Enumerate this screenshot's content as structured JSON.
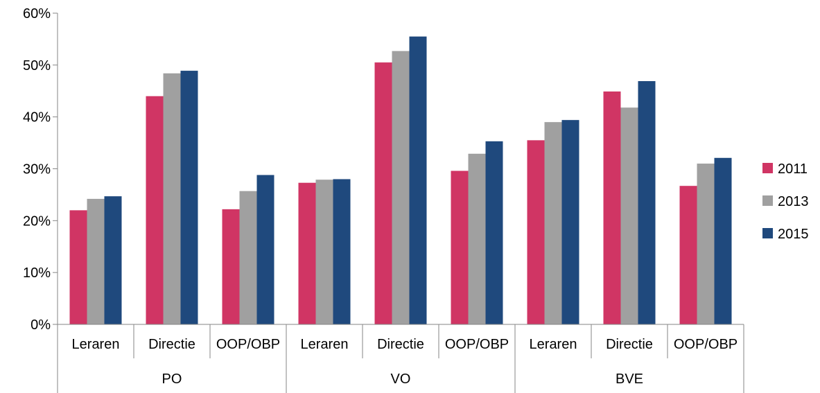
{
  "chart_data": {
    "type": "bar",
    "groups": [
      {
        "label": "PO",
        "categories": [
          "Leraren",
          "Directie",
          "OOP/OBP"
        ]
      },
      {
        "label": "VO",
        "categories": [
          "Leraren",
          "Directie",
          "OOP/OBP"
        ]
      },
      {
        "label": "BVE",
        "categories": [
          "Leraren",
          "Directie",
          "OOP/OBP"
        ]
      }
    ],
    "series": [
      {
        "name": "2011",
        "color": "#d03564",
        "values": [
          22.0,
          44.0,
          22.2,
          27.3,
          50.5,
          29.6,
          35.5,
          44.9,
          26.7
        ]
      },
      {
        "name": "2013",
        "color": "#a0a0a0",
        "values": [
          24.2,
          48.4,
          25.7,
          27.9,
          52.7,
          32.9,
          39.0,
          41.8,
          31.0
        ]
      },
      {
        "name": "2015",
        "color": "#1f497d",
        "values": [
          24.7,
          48.9,
          28.8,
          28.0,
          55.5,
          35.3,
          39.4,
          46.9,
          32.1
        ]
      }
    ],
    "y_ticks": [
      "0%",
      "10%",
      "20%",
      "30%",
      "40%",
      "50%",
      "60%"
    ],
    "ylim": [
      0,
      60
    ],
    "legend_position": "right",
    "grid": false
  }
}
